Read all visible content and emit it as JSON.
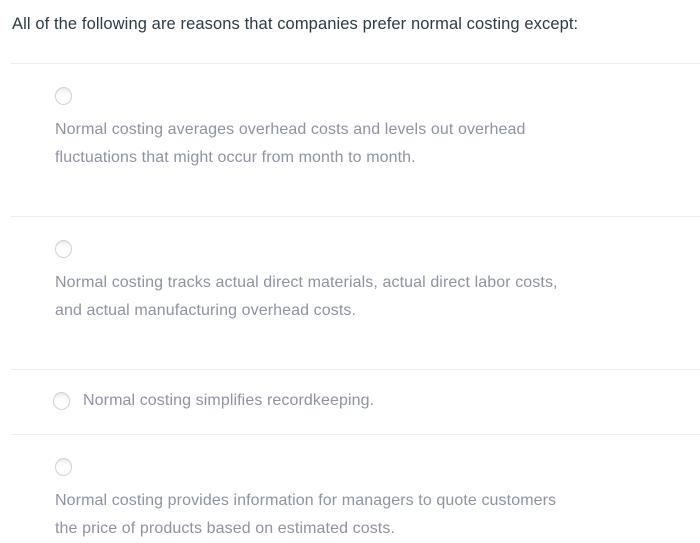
{
  "question": {
    "text": "All of the following are reasons that companies prefer normal costing except:"
  },
  "options": [
    {
      "layout": "stacked",
      "selected": false,
      "lines": [
        "Normal costing averages overhead costs and levels out overhead",
        "fluctuations that might occur from month to month."
      ]
    },
    {
      "layout": "stacked",
      "selected": false,
      "lines": [
        "Normal costing tracks actual direct materials, actual direct labor costs,",
        "and actual manufacturing overhead costs."
      ]
    },
    {
      "layout": "inline",
      "selected": false,
      "lines": [
        "Normal costing simplifies recordkeeping."
      ]
    },
    {
      "layout": "stacked",
      "selected": false,
      "lines": [
        "Normal costing provides information for managers to quote customers",
        "the price of products based on estimated costs."
      ]
    }
  ],
  "colors": {
    "question_text": "#2d3b45",
    "answer_text": "#8e93a2",
    "divider": "#ececec",
    "radio_border": "#d2d2d2",
    "page_bg": "#ffffff"
  }
}
